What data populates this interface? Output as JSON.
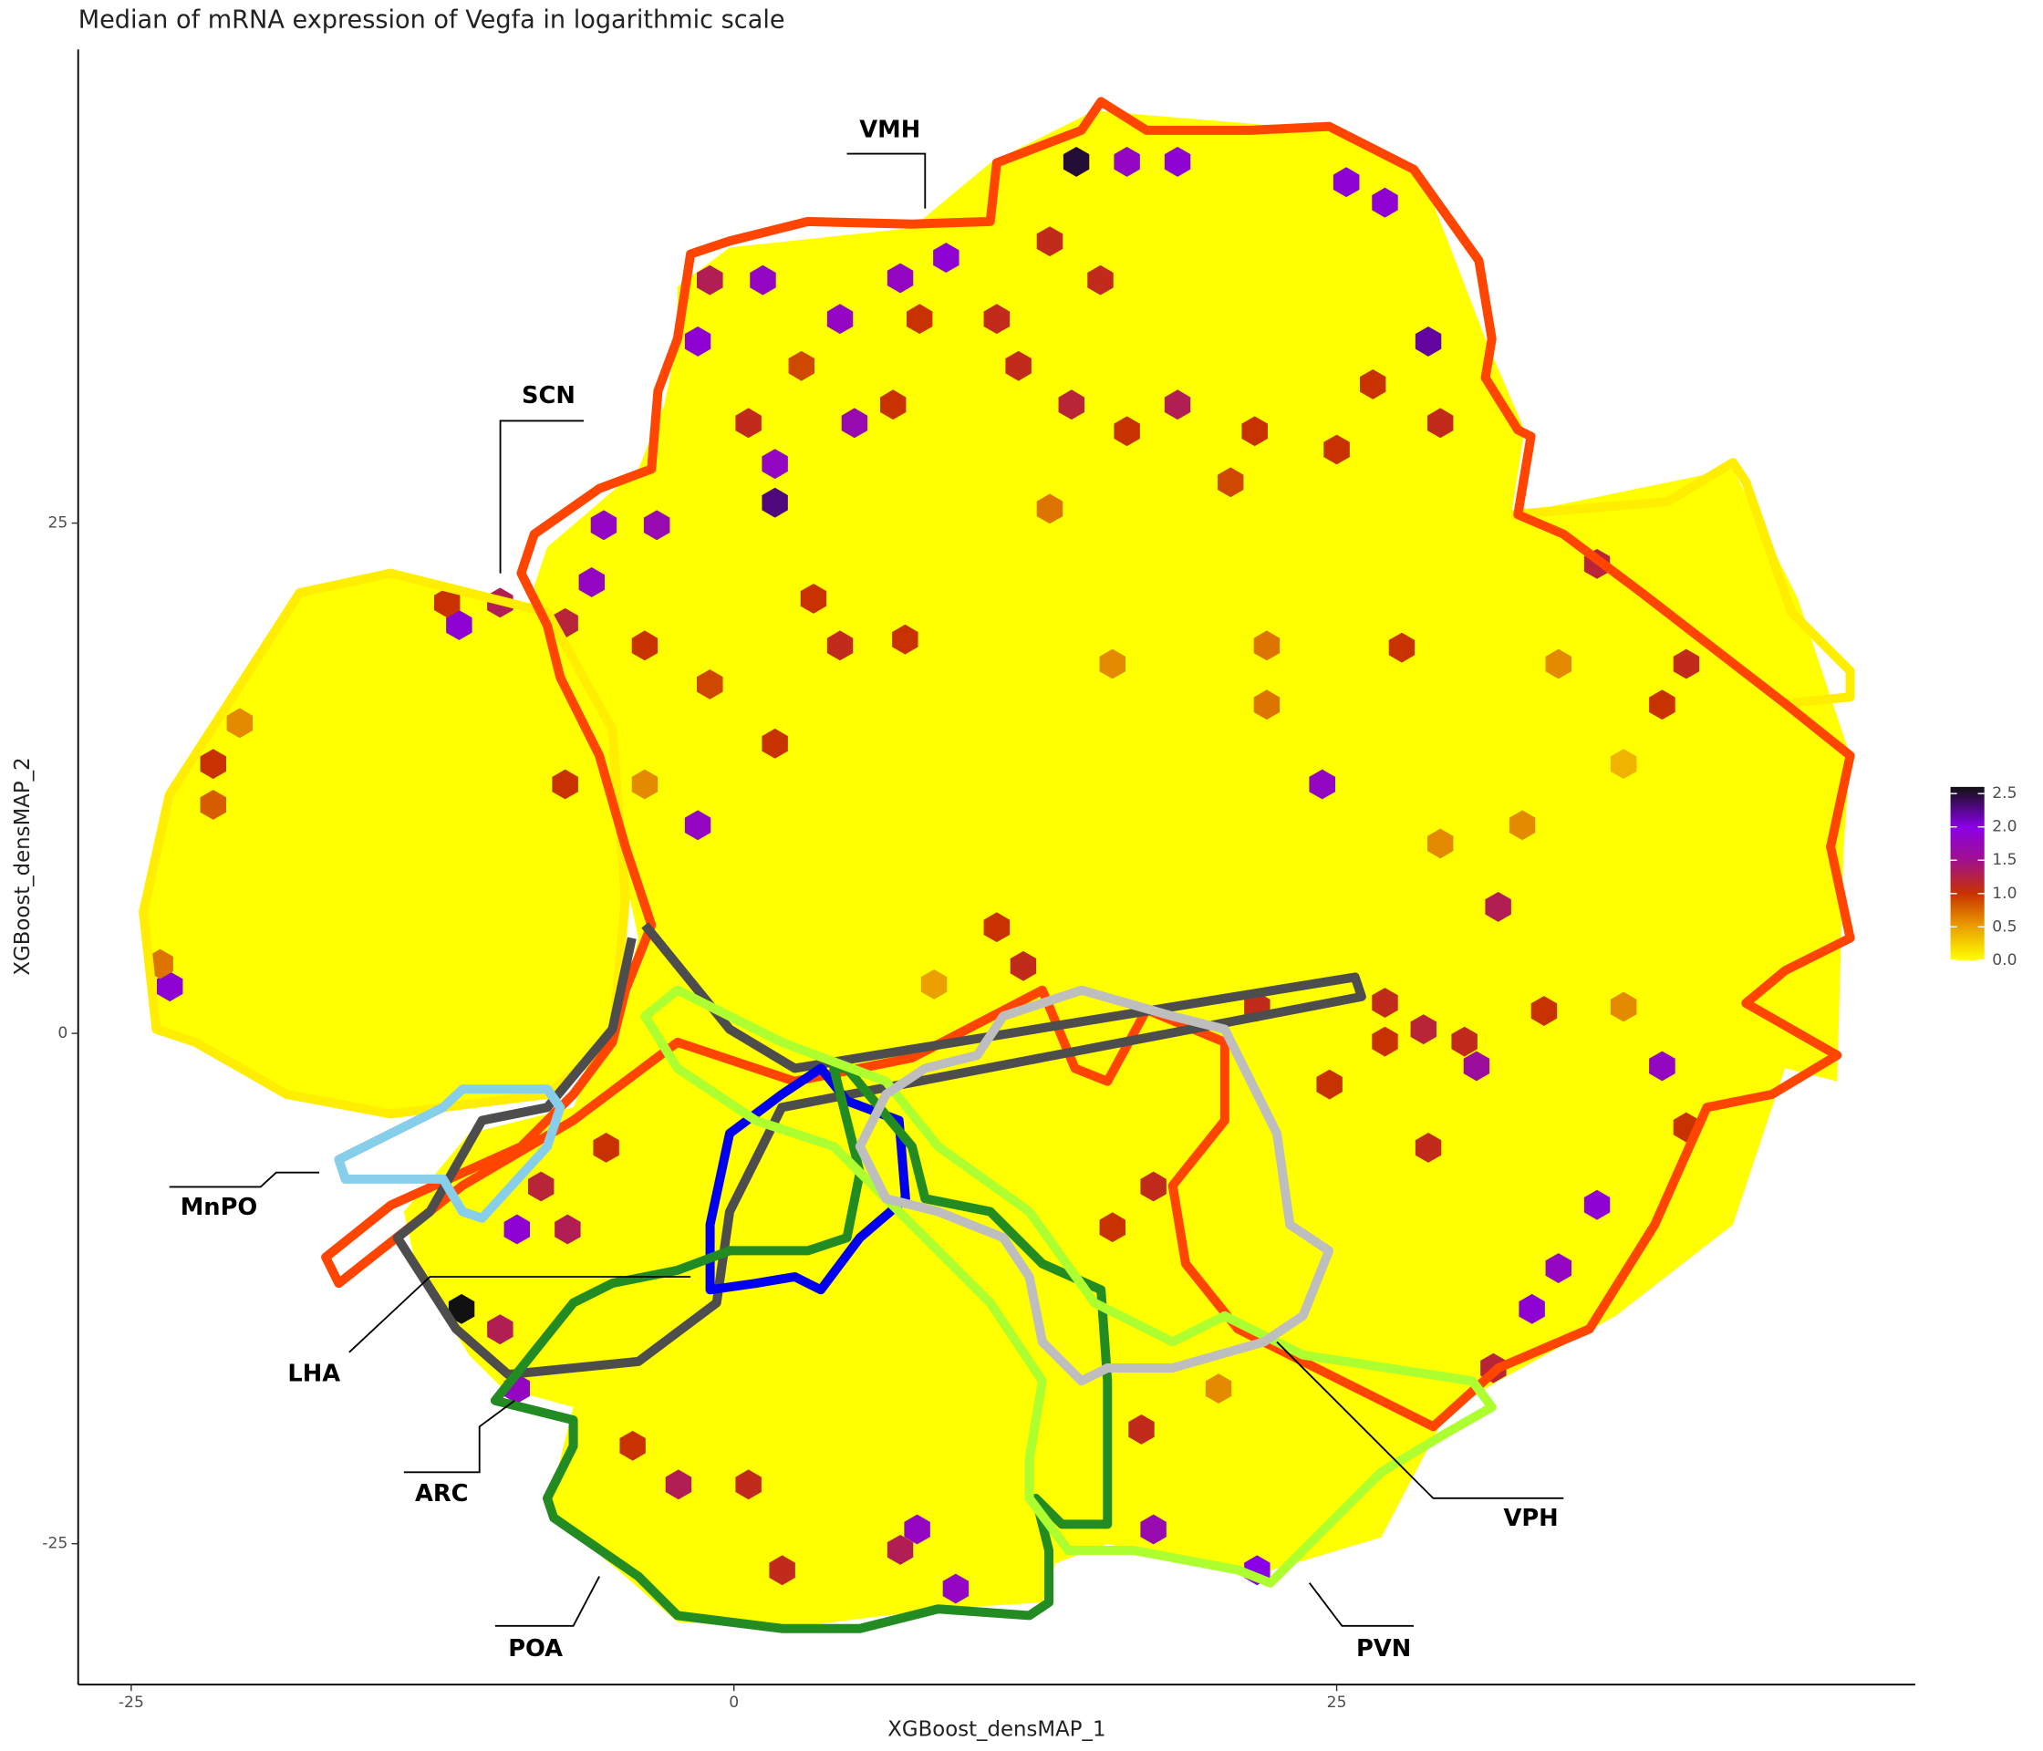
{
  "chart_data": {
    "type": "hexbin",
    "title": "Median of mRNA expression of Vegfa in logarithmic scale",
    "x_label": "XGBoost_densMAP_1",
    "y_label": "XGBoost_densMAP_2",
    "xlim": [
      -27.2,
      49.0
    ],
    "ylim": [
      -31.9,
      48.2
    ],
    "xticks": [
      -25,
      0,
      25
    ],
    "yticks": [
      -25,
      0,
      25
    ],
    "x": [
      14.2,
      16.3,
      18.4,
      27.0,
      25.4,
      8.8,
      6.9,
      -1.0,
      1.2,
      4.4,
      -1.5,
      28.8,
      1.7,
      -5.4,
      -3.2,
      -5.9,
      -11.4,
      -9.7,
      -11.9,
      -7.0,
      5.0,
      1.7,
      24.4,
      -1.5,
      31.7,
      38.5,
      35.8,
      34.2,
      33.1,
      31.5,
      21.7,
      17.4,
      9.2,
      7.6,
      6.9,
      -2.3,
      -9.0,
      -11.3,
      -9.7,
      -9.0,
      -6.9,
      -8.0,
      -5.3,
      -23.4,
      -23.8,
      -21.6,
      -21.6,
      -20.5,
      -7.0,
      -3.7,
      7.7,
      10.9,
      13.1,
      15.2,
      11.8,
      14.0,
      16.3,
      18.4,
      21.6,
      26.5,
      29.3,
      25.0,
      20.6,
      13.1,
      0.6,
      2.8,
      6.6,
      3.3,
      -3.7,
      -1.0,
      1.7,
      4.4,
      7.1,
      15.7,
      22.1,
      27.7,
      35.8,
      39.5,
      38.5,
      27.0,
      28.6,
      30.3,
      30.8,
      27.0,
      33.6,
      39.5,
      21.7,
      24.7,
      28.8,
      17.4,
      15.7,
      16.9,
      20.1,
      0.6,
      2.0,
      -4.2,
      10.9,
      12.0,
      8.3,
      36.9,
      29.3,
      32.7,
      36.9,
      34.2,
      22.1
    ],
    "y": [
      42.7,
      42.7,
      42.7,
      40.7,
      41.7,
      38.0,
      37.0,
      36.9,
      36.9,
      35.0,
      33.9,
      33.9,
      26.0,
      24.9,
      24.9,
      22.1,
      20.0,
      21.1,
      21.1,
      20.1,
      29.9,
      27.9,
      12.2,
      10.2,
      6.2,
      -1.6,
      -8.4,
      -11.5,
      -13.5,
      -16.4,
      -26.3,
      -24.3,
      -27.2,
      -24.3,
      -25.3,
      -22.1,
      -17.4,
      -13.5,
      -14.5,
      -9.6,
      -9.6,
      -7.5,
      -5.6,
      2.3,
      3.4,
      11.2,
      13.2,
      15.2,
      12.2,
      12.2,
      35.0,
      35.0,
      38.8,
      36.9,
      32.7,
      30.8,
      29.5,
      30.8,
      29.5,
      31.8,
      29.9,
      28.6,
      27.0,
      25.7,
      29.9,
      32.7,
      30.8,
      21.3,
      19.0,
      17.1,
      14.2,
      19.0,
      19.3,
      18.1,
      19.0,
      18.9,
      23.0,
      18.1,
      16.1,
      1.5,
      0.2,
      -0.4,
      -1.6,
      -0.4,
      1.1,
      -4.6,
      1.3,
      -2.5,
      -5.6,
      -7.5,
      -9.5,
      -19.4,
      -17.4,
      -22.1,
      -26.3,
      -20.2,
      5.2,
      3.3,
      2.4,
      1.3,
      9.3,
      10.2,
      13.2,
      18.1,
      16.1
    ],
    "values": [
      2.5,
      1.8,
      1.9,
      1.9,
      1.9,
      1.9,
      1.8,
      1.3,
      1.8,
      1.8,
      1.9,
      2.2,
      2.3,
      1.8,
      1.7,
      1.8,
      1.9,
      1.3,
      1.0,
      1.2,
      1.7,
      1.8,
      1.8,
      1.8,
      1.3,
      1.8,
      1.9,
      1.8,
      1.9,
      1.2,
      2.0,
      1.7,
      1.8,
      1.8,
      1.3,
      1.3,
      1.8,
      2.6,
      1.3,
      1.9,
      1.3,
      1.2,
      1.0,
      1.9,
      0.7,
      0.8,
      1.0,
      0.6,
      1.0,
      0.6,
      1.0,
      1.1,
      1.1,
      1.1,
      1.1,
      1.2,
      1.0,
      1.3,
      1.0,
      1.0,
      1.1,
      1.0,
      0.9,
      0.7,
      1.1,
      0.9,
      1.0,
      1.0,
      1.0,
      0.9,
      1.0,
      1.1,
      1.0,
      0.6,
      0.7,
      1.0,
      1.2,
      1.1,
      1.0,
      1.1,
      1.2,
      1.1,
      1.6,
      1.0,
      1.0,
      1.0,
      1.1,
      1.0,
      1.1,
      1.1,
      1.0,
      1.1,
      0.6,
      1.1,
      1.1,
      1.0,
      1.0,
      1.1,
      0.5,
      0.6,
      0.6,
      0.6,
      0.4,
      0.6,
      0.7
    ],
    "colorscale": [
      [
        0,
        "#ffff00"
      ],
      [
        0.5,
        "#eba000"
      ],
      [
        1.0,
        "#c83200"
      ],
      [
        1.5,
        "#a0108c"
      ],
      [
        2.0,
        "#8a00e6"
      ],
      [
        2.6,
        "#111111"
      ]
    ],
    "clim": [
      0,
      2.6
    ],
    "cticks": [
      {
        "value": 0,
        "label": "0.0"
      },
      {
        "value": 0.5,
        "label": "0.5"
      },
      {
        "value": 1.0,
        "label": "1.0"
      },
      {
        "value": 1.5,
        "label": "1.5"
      },
      {
        "value": 2.0,
        "label": "2.0"
      },
      {
        "value": 2.5,
        "label": "2.5"
      }
    ],
    "annotations": [
      "VMH",
      "SCN",
      "MnPO",
      "LHA",
      "ARC",
      "POA",
      "VPH",
      "PVN"
    ]
  }
}
